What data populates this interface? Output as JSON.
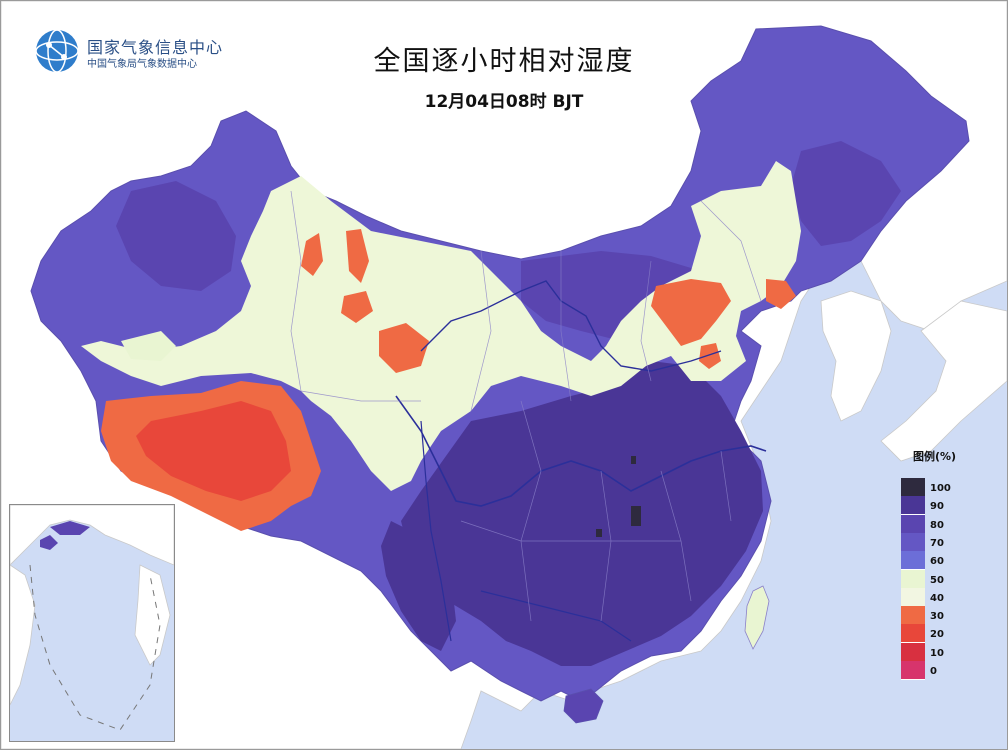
{
  "logo": {
    "name": "国家气象信息中心",
    "subname": "中国气象局气象数据中心"
  },
  "map": {
    "title": "全国逐小时相对湿度",
    "time": "12月04日08时 BJT"
  },
  "legend": {
    "title": "图例(%)",
    "items": [
      {
        "label": "100",
        "color": "#2e2a3e"
      },
      {
        "label": "90",
        "color": "#4a3696"
      },
      {
        "label": "80",
        "color": "#5a45b0"
      },
      {
        "label": "70",
        "color": "#6457c4"
      },
      {
        "label": "60",
        "color": "#6c6ed8"
      },
      {
        "label": "50",
        "color": "#e9f5d2"
      },
      {
        "label": "40",
        "color": "#f2f6e2"
      },
      {
        "label": "30",
        "color": "#ef6a44"
      },
      {
        "label": "20",
        "color": "#e8473a"
      },
      {
        "label": "10",
        "color": "#d83040"
      },
      {
        "label": "0",
        "color": "#d7346c"
      }
    ]
  },
  "colors": {
    "sea": "#cfdcf5",
    "neighbor_land": "#ffffff",
    "river": "#2b2f9a",
    "boundary": "#8a80c8"
  }
}
